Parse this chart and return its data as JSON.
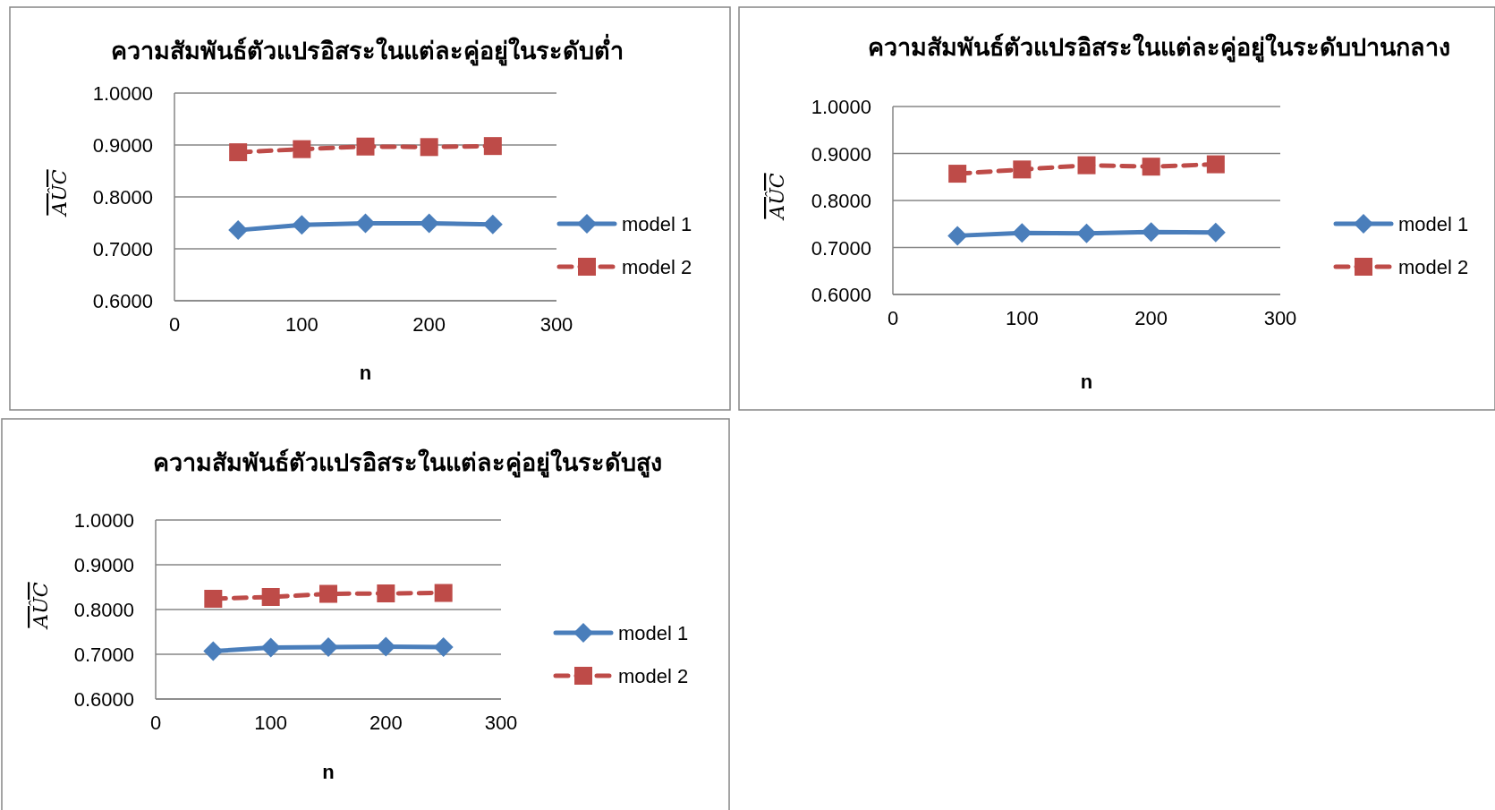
{
  "chart_data": [
    {
      "type": "line",
      "title": "ความสัมพันธ์ตัวแปรอิสระในแต่ละคู่อยู่ในระดับต่ำ",
      "xlabel": "n",
      "ylabel": "AÛC",
      "x": [
        50,
        100,
        150,
        200,
        250
      ],
      "xlim": [
        0,
        300
      ],
      "xticks": [
        0,
        100,
        200,
        300
      ],
      "ylim": [
        0.6,
        1.0
      ],
      "yticks": [
        {
          "value": 0.6,
          "label": "0.6000"
        },
        {
          "value": 0.7,
          "label": "0.7000"
        },
        {
          "value": 0.8,
          "label": "0.8000"
        },
        {
          "value": 0.9,
          "label": "0.9000"
        },
        {
          "value": 1.0,
          "label": "1.0000"
        }
      ],
      "grid": "y",
      "legend": "right",
      "series": [
        {
          "name": "model 1",
          "color": "#4a7ebb",
          "marker": "diamond",
          "line_style": "solid",
          "values": [
            0.736,
            0.746,
            0.749,
            0.749,
            0.747
          ]
        },
        {
          "name": "model 2",
          "color": "#be4b48",
          "marker": "square",
          "line_style": "dashed",
          "values": [
            0.886,
            0.892,
            0.897,
            0.896,
            0.898
          ]
        }
      ]
    },
    {
      "type": "line",
      "title": "ความสัมพันธ์ตัวแปรอิสระในแต่ละคู่อยู่ในระดับปานกลาง",
      "xlabel": "n",
      "ylabel": "AÛC",
      "x": [
        50,
        100,
        150,
        200,
        250
      ],
      "xlim": [
        0,
        300
      ],
      "xticks": [
        0,
        100,
        200,
        300
      ],
      "ylim": [
        0.6,
        1.0
      ],
      "yticks": [
        {
          "value": 0.6,
          "label": "0.6000"
        },
        {
          "value": 0.7,
          "label": "0.7000"
        },
        {
          "value": 0.8,
          "label": "0.8000"
        },
        {
          "value": 0.9,
          "label": "0.9000"
        },
        {
          "value": 1.0,
          "label": "1.0000"
        }
      ],
      "grid": "y",
      "legend": "right",
      "series": [
        {
          "name": "model 1",
          "color": "#4a7ebb",
          "marker": "diamond",
          "line_style": "solid",
          "values": [
            0.725,
            0.731,
            0.73,
            0.733,
            0.732
          ]
        },
        {
          "name": "model 2",
          "color": "#be4b48",
          "marker": "square",
          "line_style": "dashed",
          "values": [
            0.857,
            0.866,
            0.875,
            0.872,
            0.877
          ]
        }
      ]
    },
    {
      "type": "line",
      "title": "ความสัมพันธ์ตัวแปรอิสระในแต่ละคู่อยู่ในระดับสูง",
      "xlabel": "n",
      "ylabel": "AÛC",
      "x": [
        50,
        100,
        150,
        200,
        250
      ],
      "xlim": [
        0,
        300
      ],
      "xticks": [
        0,
        100,
        200,
        300
      ],
      "ylim": [
        0.6,
        1.0
      ],
      "yticks": [
        {
          "value": 0.6,
          "label": "0.6000"
        },
        {
          "value": 0.7,
          "label": "0.7000"
        },
        {
          "value": 0.8,
          "label": "0.8000"
        },
        {
          "value": 0.9,
          "label": "0.9000"
        },
        {
          "value": 1.0,
          "label": "1.0000"
        }
      ],
      "grid": "y",
      "legend": "right",
      "series": [
        {
          "name": "model 1",
          "color": "#4a7ebb",
          "marker": "diamond",
          "line_style": "solid",
          "values": [
            0.707,
            0.715,
            0.716,
            0.717,
            0.716
          ]
        },
        {
          "name": "model 2",
          "color": "#be4b48",
          "marker": "square",
          "line_style": "dashed",
          "values": [
            0.824,
            0.828,
            0.835,
            0.836,
            0.837
          ]
        }
      ]
    }
  ]
}
